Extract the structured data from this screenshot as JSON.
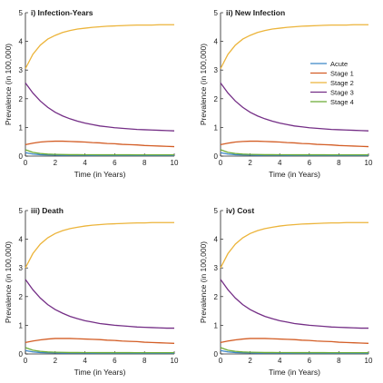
{
  "colors": {
    "Acute": "#3a86c8",
    "Stage 1": "#d35d25",
    "Stage 2": "#ecb43a",
    "Stage 3": "#742e86",
    "Stage 4": "#6bab35"
  },
  "chart_data": [
    {
      "type": "line",
      "title": "i) Infection-Years",
      "xlabel": "Time (in Years)",
      "ylabel": "Prevalence (in 100,000)",
      "xlim": [
        0,
        10
      ],
      "ylim": [
        0,
        5
      ],
      "xticks": [
        0,
        2,
        4,
        6,
        8,
        10
      ],
      "yticks": [
        0,
        1,
        2,
        3,
        4,
        5
      ],
      "x": [
        0,
        0.5,
        1,
        1.5,
        2,
        2.5,
        3,
        3.5,
        4,
        4.5,
        5,
        5.5,
        6,
        6.5,
        7,
        7.5,
        8,
        8.5,
        9,
        9.5,
        10
      ],
      "series": [
        {
          "name": "Acute",
          "values": [
            0.12,
            0.07,
            0.05,
            0.04,
            0.035,
            0.03,
            0.03,
            0.028,
            0.027,
            0.026,
            0.025,
            0.025,
            0.025,
            0.024,
            0.024,
            0.024,
            0.023,
            0.023,
            0.023,
            0.023,
            0.023
          ]
        },
        {
          "name": "Stage 1",
          "values": [
            0.4,
            0.45,
            0.49,
            0.51,
            0.52,
            0.52,
            0.51,
            0.5,
            0.49,
            0.47,
            0.46,
            0.44,
            0.43,
            0.41,
            0.4,
            0.39,
            0.37,
            0.36,
            0.35,
            0.34,
            0.33
          ]
        },
        {
          "name": "Stage 2",
          "values": [
            3.05,
            3.55,
            3.87,
            4.08,
            4.21,
            4.31,
            4.38,
            4.43,
            4.46,
            4.49,
            4.51,
            4.53,
            4.54,
            4.55,
            4.56,
            4.57,
            4.57,
            4.57,
            4.58,
            4.58,
            4.58
          ]
        },
        {
          "name": "Stage 3",
          "values": [
            2.55,
            2.2,
            1.92,
            1.7,
            1.53,
            1.4,
            1.3,
            1.22,
            1.15,
            1.1,
            1.05,
            1.02,
            0.99,
            0.97,
            0.95,
            0.93,
            0.92,
            0.91,
            0.9,
            0.89,
            0.88
          ]
        },
        {
          "name": "Stage 4",
          "values": [
            0.22,
            0.13,
            0.09,
            0.07,
            0.06,
            0.055,
            0.05,
            0.05,
            0.048,
            0.047,
            0.046,
            0.046,
            0.045,
            0.045,
            0.045,
            0.044,
            0.044,
            0.044,
            0.044,
            0.044,
            0.044
          ]
        }
      ]
    },
    {
      "type": "line",
      "title": "ii) New Infection",
      "xlabel": "Time (in Years)",
      "ylabel": "Prevalence (in 100,000)",
      "xlim": [
        0,
        10
      ],
      "ylim": [
        0,
        5
      ],
      "xticks": [
        0,
        2,
        4,
        6,
        8,
        10
      ],
      "yticks": [
        0,
        1,
        2,
        3,
        4,
        5
      ],
      "legend": {
        "position": "right",
        "entries": [
          "Acute",
          "Stage 1",
          "Stage 2",
          "Stage 3",
          "Stage 4"
        ]
      },
      "x": [
        0,
        0.5,
        1,
        1.5,
        2,
        2.5,
        3,
        3.5,
        4,
        4.5,
        5,
        5.5,
        6,
        6.5,
        7,
        7.5,
        8,
        8.5,
        9,
        9.5,
        10
      ],
      "series": [
        {
          "name": "Acute",
          "values": [
            0.12,
            0.07,
            0.05,
            0.04,
            0.035,
            0.03,
            0.03,
            0.028,
            0.027,
            0.026,
            0.025,
            0.025,
            0.025,
            0.024,
            0.024,
            0.024,
            0.023,
            0.023,
            0.023,
            0.023,
            0.023
          ]
        },
        {
          "name": "Stage 1",
          "values": [
            0.4,
            0.45,
            0.49,
            0.51,
            0.52,
            0.52,
            0.51,
            0.5,
            0.49,
            0.47,
            0.46,
            0.44,
            0.43,
            0.41,
            0.4,
            0.39,
            0.37,
            0.36,
            0.35,
            0.34,
            0.33
          ]
        },
        {
          "name": "Stage 2",
          "values": [
            3.05,
            3.55,
            3.87,
            4.08,
            4.21,
            4.31,
            4.38,
            4.43,
            4.46,
            4.49,
            4.51,
            4.53,
            4.54,
            4.55,
            4.56,
            4.57,
            4.57,
            4.57,
            4.58,
            4.58,
            4.58
          ]
        },
        {
          "name": "Stage 3",
          "values": [
            2.55,
            2.2,
            1.92,
            1.7,
            1.53,
            1.4,
            1.3,
            1.22,
            1.15,
            1.1,
            1.05,
            1.02,
            0.99,
            0.97,
            0.95,
            0.93,
            0.92,
            0.91,
            0.9,
            0.89,
            0.88
          ]
        },
        {
          "name": "Stage 4",
          "values": [
            0.22,
            0.13,
            0.09,
            0.07,
            0.06,
            0.055,
            0.05,
            0.05,
            0.048,
            0.047,
            0.046,
            0.046,
            0.045,
            0.045,
            0.045,
            0.044,
            0.044,
            0.044,
            0.044,
            0.044,
            0.044
          ]
        }
      ]
    },
    {
      "type": "line",
      "title": "iii) Death",
      "xlabel": "Time (in Years)",
      "ylabel": "Prevalence (in 100,000)",
      "xlim": [
        0,
        10
      ],
      "ylim": [
        0,
        5
      ],
      "xticks": [
        0,
        2,
        4,
        6,
        8,
        10
      ],
      "yticks": [
        0,
        1,
        2,
        3,
        4,
        5
      ],
      "x": [
        0,
        0.5,
        1,
        1.5,
        2,
        2.5,
        3,
        3.5,
        4,
        4.5,
        5,
        5.5,
        6,
        6.5,
        7,
        7.5,
        8,
        8.5,
        9,
        9.5,
        10
      ],
      "series": [
        {
          "name": "Acute",
          "values": [
            0.12,
            0.07,
            0.05,
            0.04,
            0.035,
            0.03,
            0.03,
            0.028,
            0.027,
            0.026,
            0.025,
            0.025,
            0.025,
            0.024,
            0.024,
            0.024,
            0.023,
            0.023,
            0.023,
            0.023,
            0.023
          ]
        },
        {
          "name": "Stage 1",
          "values": [
            0.4,
            0.45,
            0.49,
            0.52,
            0.54,
            0.54,
            0.54,
            0.53,
            0.52,
            0.51,
            0.5,
            0.48,
            0.47,
            0.45,
            0.44,
            0.43,
            0.41,
            0.4,
            0.39,
            0.38,
            0.37
          ]
        },
        {
          "name": "Stage 2",
          "values": [
            3.0,
            3.5,
            3.83,
            4.05,
            4.2,
            4.3,
            4.37,
            4.42,
            4.46,
            4.49,
            4.51,
            4.53,
            4.54,
            4.55,
            4.56,
            4.57,
            4.57,
            4.58,
            4.58,
            4.58,
            4.58
          ]
        },
        {
          "name": "Stage 3",
          "values": [
            2.6,
            2.24,
            1.95,
            1.72,
            1.55,
            1.42,
            1.31,
            1.23,
            1.16,
            1.11,
            1.06,
            1.03,
            1.0,
            0.98,
            0.96,
            0.94,
            0.93,
            0.92,
            0.91,
            0.9,
            0.9
          ]
        },
        {
          "name": "Stage 4",
          "values": [
            0.22,
            0.13,
            0.09,
            0.07,
            0.06,
            0.055,
            0.05,
            0.05,
            0.048,
            0.047,
            0.046,
            0.046,
            0.045,
            0.045,
            0.045,
            0.044,
            0.044,
            0.044,
            0.044,
            0.044,
            0.044
          ]
        }
      ]
    },
    {
      "type": "line",
      "title": "iv) Cost",
      "xlabel": "Time (in Years)",
      "ylabel": "Prevalence (in 100,000)",
      "xlim": [
        0,
        10
      ],
      "ylim": [
        0,
        5
      ],
      "xticks": [
        0,
        2,
        4,
        6,
        8,
        10
      ],
      "yticks": [
        0,
        1,
        2,
        3,
        4,
        5
      ],
      "x": [
        0,
        0.5,
        1,
        1.5,
        2,
        2.5,
        3,
        3.5,
        4,
        4.5,
        5,
        5.5,
        6,
        6.5,
        7,
        7.5,
        8,
        8.5,
        9,
        9.5,
        10
      ],
      "series": [
        {
          "name": "Acute",
          "values": [
            0.12,
            0.07,
            0.05,
            0.04,
            0.035,
            0.03,
            0.03,
            0.028,
            0.027,
            0.026,
            0.025,
            0.025,
            0.025,
            0.024,
            0.024,
            0.024,
            0.023,
            0.023,
            0.023,
            0.023,
            0.023
          ]
        },
        {
          "name": "Stage 1",
          "values": [
            0.4,
            0.45,
            0.49,
            0.52,
            0.54,
            0.54,
            0.54,
            0.53,
            0.52,
            0.51,
            0.5,
            0.48,
            0.47,
            0.45,
            0.44,
            0.43,
            0.41,
            0.4,
            0.39,
            0.38,
            0.37
          ]
        },
        {
          "name": "Stage 2",
          "values": [
            3.0,
            3.5,
            3.83,
            4.05,
            4.2,
            4.3,
            4.37,
            4.42,
            4.46,
            4.49,
            4.51,
            4.53,
            4.54,
            4.55,
            4.56,
            4.57,
            4.57,
            4.58,
            4.58,
            4.58,
            4.58
          ]
        },
        {
          "name": "Stage 3",
          "values": [
            2.6,
            2.24,
            1.95,
            1.72,
            1.55,
            1.42,
            1.31,
            1.23,
            1.16,
            1.11,
            1.06,
            1.03,
            1.0,
            0.98,
            0.96,
            0.94,
            0.93,
            0.92,
            0.91,
            0.9,
            0.9
          ]
        },
        {
          "name": "Stage 4",
          "values": [
            0.22,
            0.13,
            0.09,
            0.07,
            0.06,
            0.055,
            0.05,
            0.05,
            0.048,
            0.047,
            0.046,
            0.046,
            0.045,
            0.045,
            0.045,
            0.044,
            0.044,
            0.044,
            0.044,
            0.044,
            0.044
          ]
        }
      ]
    }
  ]
}
